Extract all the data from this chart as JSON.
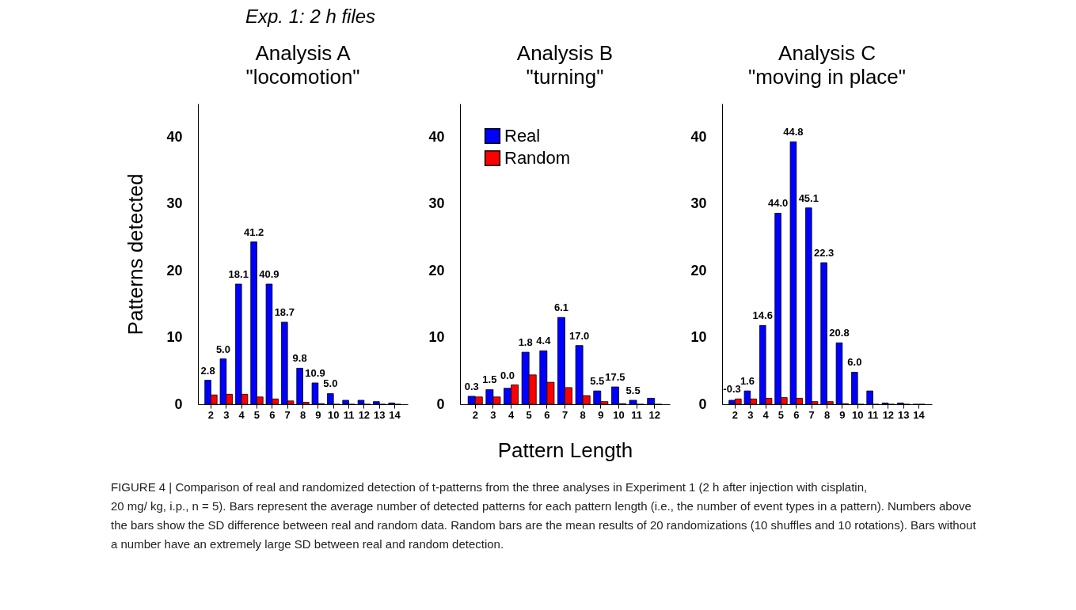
{
  "chart_data": [
    {
      "type": "bar",
      "title": "Analysis A\n\"locomotion\"",
      "ylabel": "Patterns detected",
      "categories": [
        "2",
        "3",
        "4",
        "5",
        "6",
        "7",
        "8",
        "9",
        "10",
        "11",
        "12",
        "13",
        "14"
      ],
      "ylim": [
        0,
        45
      ],
      "yticks": [
        0,
        10,
        20,
        30,
        40
      ],
      "legend": false,
      "series": [
        {
          "color": "#0000ff",
          "values": [
            3.6,
            6.8,
            18.0,
            24.3,
            18.0,
            12.3,
            5.4,
            3.2,
            1.6,
            0.6,
            0.6,
            0.4,
            0.2
          ]
        },
        {
          "color": "#ff0000",
          "values": [
            1.4,
            1.5,
            1.5,
            1.1,
            0.8,
            0.5,
            0.3,
            0.1,
            0,
            0,
            0,
            0,
            0
          ]
        }
      ],
      "annotations": [
        {
          "text": "2.8",
          "x": "2",
          "y": 3.6
        },
        {
          "text": "5.0",
          "x": "3",
          "y": 6.8
        },
        {
          "text": "18.1",
          "x": "4",
          "y": 18.0
        },
        {
          "text": "41.2",
          "x": "5",
          "y": 24.3
        },
        {
          "text": "40.9",
          "x": "6",
          "y": 18.0
        },
        {
          "text": "18.7",
          "x": "7",
          "y": 12.3
        },
        {
          "text": "9.8",
          "x": "8",
          "y": 5.4
        },
        {
          "text": "10.9",
          "x": "9",
          "y": 3.2
        },
        {
          "text": "5.0",
          "x": "10",
          "y": 1.6
        }
      ]
    },
    {
      "type": "bar",
      "title": "Analysis B\n\"turning\"",
      "xlabel": "Pattern Length",
      "categories": [
        "2",
        "3",
        "4",
        "5",
        "6",
        "7",
        "8",
        "9",
        "10",
        "11",
        "12"
      ],
      "ylim": [
        0,
        45
      ],
      "yticks": [
        0,
        10,
        20,
        30,
        40
      ],
      "legend": "top left",
      "series": [
        {
          "name": "Real",
          "color": "#0000ff",
          "values": [
            1.2,
            2.2,
            2.4,
            7.8,
            8.0,
            13.0,
            8.8,
            2.0,
            2.6,
            0.6,
            0.9
          ]
        },
        {
          "name": "Random",
          "color": "#ff0000",
          "values": [
            1.1,
            1.1,
            2.9,
            4.4,
            3.3,
            2.5,
            1.3,
            0.4,
            0.1,
            0,
            0
          ]
        }
      ],
      "annotations": [
        {
          "text": "0.3",
          "x": "2",
          "y": 1.2
        },
        {
          "text": "1.5",
          "x": "3",
          "y": 2.2
        },
        {
          "text": "0.0",
          "x": "4",
          "y": 2.9
        },
        {
          "text": "1.8",
          "x": "5",
          "y": 7.8
        },
        {
          "text": "4.4",
          "x": "6",
          "y": 8.0
        },
        {
          "text": "6.1",
          "x": "7",
          "y": 13.0
        },
        {
          "text": "17.0",
          "x": "8",
          "y": 8.8
        },
        {
          "text": "5.5",
          "x": "9",
          "y": 2.0
        },
        {
          "text": "17.5",
          "x": "10",
          "y": 2.6
        },
        {
          "text": "5.5",
          "x": "11",
          "y": 0.6
        }
      ]
    },
    {
      "type": "bar",
      "title": "Analysis C\n\"moving in place\"",
      "categories": [
        "2",
        "3",
        "4",
        "5",
        "6",
        "7",
        "8",
        "9",
        "10",
        "11",
        "12",
        "13",
        "14"
      ],
      "ylim": [
        0,
        45
      ],
      "yticks": [
        0,
        10,
        20,
        30,
        40
      ],
      "legend": false,
      "series": [
        {
          "color": "#0000ff",
          "values": [
            0.6,
            2.0,
            11.8,
            28.6,
            39.3,
            29.4,
            21.2,
            9.2,
            4.8,
            2.0,
            0.2,
            0.2,
            0
          ]
        },
        {
          "color": "#ff0000",
          "values": [
            0.8,
            0.8,
            0.9,
            1.0,
            0.9,
            0.4,
            0.4,
            0.1,
            0,
            0,
            0,
            0,
            0
          ]
        }
      ],
      "annotations": [
        {
          "text": "-0.3",
          "x": "2",
          "y": 0.8
        },
        {
          "text": "1.6",
          "x": "3",
          "y": 2.0
        },
        {
          "text": "14.6",
          "x": "4",
          "y": 11.8
        },
        {
          "text": "44.0",
          "x": "5",
          "y": 28.6
        },
        {
          "text": "44.8",
          "x": "6",
          "y": 39.3
        },
        {
          "text": "45.1",
          "x": "7",
          "y": 29.4
        },
        {
          "text": "22.3",
          "x": "8",
          "y": 21.2
        },
        {
          "text": "20.8",
          "x": "9",
          "y": 9.2
        },
        {
          "text": "6.0",
          "x": "10",
          "y": 4.8
        }
      ]
    },
    {
      "type": "other",
      "title": "Exp. 1: 2 h files",
      "annotations": [
        "FIGURE 4 | Comparison of real and randomized detection of t-patterns from the three analyses in Experiment 1 (2 h after injection with cisplatin,",
        "20 mg/ kg, i.p., n = 5). Bars represent the average number of detected patterns for each pattern length (i.e., the number of event types in a pattern). Numbers above",
        "the bars show the SD difference between real and random data. Random bars are the mean results of 20 randomizations (10 shuffles and 10 rotations). Bars without",
        "a number have an extremely large SD between real and random detection."
      ]
    }
  ]
}
